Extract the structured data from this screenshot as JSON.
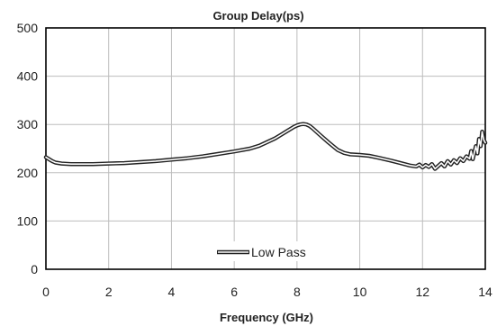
{
  "chart_data": {
    "type": "line",
    "title": "Group Delay(ps)",
    "xlabel": "Frequency (GHz)",
    "ylabel": "",
    "xlim": [
      0,
      14
    ],
    "ylim": [
      0,
      500
    ],
    "xticks": [
      0,
      2,
      4,
      6,
      8,
      10,
      12,
      14
    ],
    "yticks": [
      0,
      100,
      200,
      300,
      400,
      500
    ],
    "grid": true,
    "legend_position": "bottom-center",
    "series": [
      {
        "name": "Low Pass",
        "color": "#222222",
        "style": "double-line",
        "x": [
          0.0,
          0.1,
          0.2,
          0.3,
          0.5,
          0.8,
          1.0,
          1.5,
          2.0,
          2.5,
          3.0,
          3.5,
          4.0,
          4.5,
          5.0,
          5.5,
          6.0,
          6.5,
          6.8,
          7.0,
          7.3,
          7.5,
          7.7,
          7.9,
          8.0,
          8.1,
          8.2,
          8.3,
          8.4,
          8.5,
          8.7,
          9.0,
          9.3,
          9.5,
          9.7,
          10.0,
          10.3,
          10.6,
          11.0,
          11.3,
          11.6,
          11.8,
          11.9,
          12.0,
          12.1,
          12.2,
          12.3,
          12.4,
          12.5,
          12.6,
          12.7,
          12.8,
          12.9,
          13.0,
          13.1,
          13.2,
          13.3,
          13.4,
          13.5,
          13.55,
          13.6,
          13.7,
          13.75,
          13.8,
          13.85,
          13.9,
          13.95,
          14.0
        ],
        "values": [
          232,
          228,
          224,
          221,
          219,
          218,
          218,
          218,
          219,
          220,
          222,
          224,
          227,
          230,
          234,
          239,
          244,
          250,
          256,
          262,
          271,
          279,
          287,
          295,
          298,
          300,
          301,
          300,
          297,
          292,
          280,
          263,
          247,
          241,
          238,
          237,
          235,
          231,
          225,
          220,
          215,
          213,
          217,
          211,
          216,
          212,
          218,
          208,
          214,
          220,
          213,
          224,
          217,
          226,
          220,
          230,
          224,
          234,
          229,
          245,
          228,
          255,
          240,
          270,
          255,
          285,
          268,
          262
        ]
      }
    ]
  }
}
